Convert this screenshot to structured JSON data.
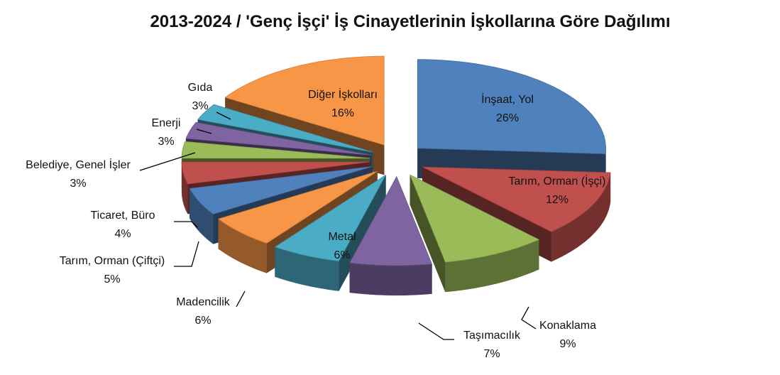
{
  "chart_data": {
    "type": "pie3d",
    "title": "2013-2024 / 'Genç İşçi' İş Cinayetlerinin İşkollarına Göre Dağılımı",
    "categories": [
      "İnşaat, Yol",
      "Tarım, Orman (İşçi)",
      "Konaklama",
      "Taşımacılık",
      "Metal",
      "Madencilik",
      "Tarım, Orman (Çiftçi)",
      "Ticaret, Büro",
      "Belediye, Genel İşler",
      "Enerji",
      "Gıda",
      "Diğer İşkolları"
    ],
    "values": [
      26,
      12,
      9,
      7,
      6,
      6,
      5,
      4,
      3,
      3,
      3,
      16
    ],
    "value_labels": [
      "26%",
      "12%",
      "9%",
      "7%",
      "6%",
      "6%",
      "5%",
      "4%",
      "3%",
      "3%",
      "3%",
      "16%"
    ],
    "colors": [
      "#4f81bd",
      "#c0504d",
      "#9bbb59",
      "#8064a2",
      "#4bacc6",
      "#f79646",
      "#4f81bd",
      "#c0504d",
      "#9bbb59",
      "#8064a2",
      "#4bacc6",
      "#f79646"
    ]
  }
}
